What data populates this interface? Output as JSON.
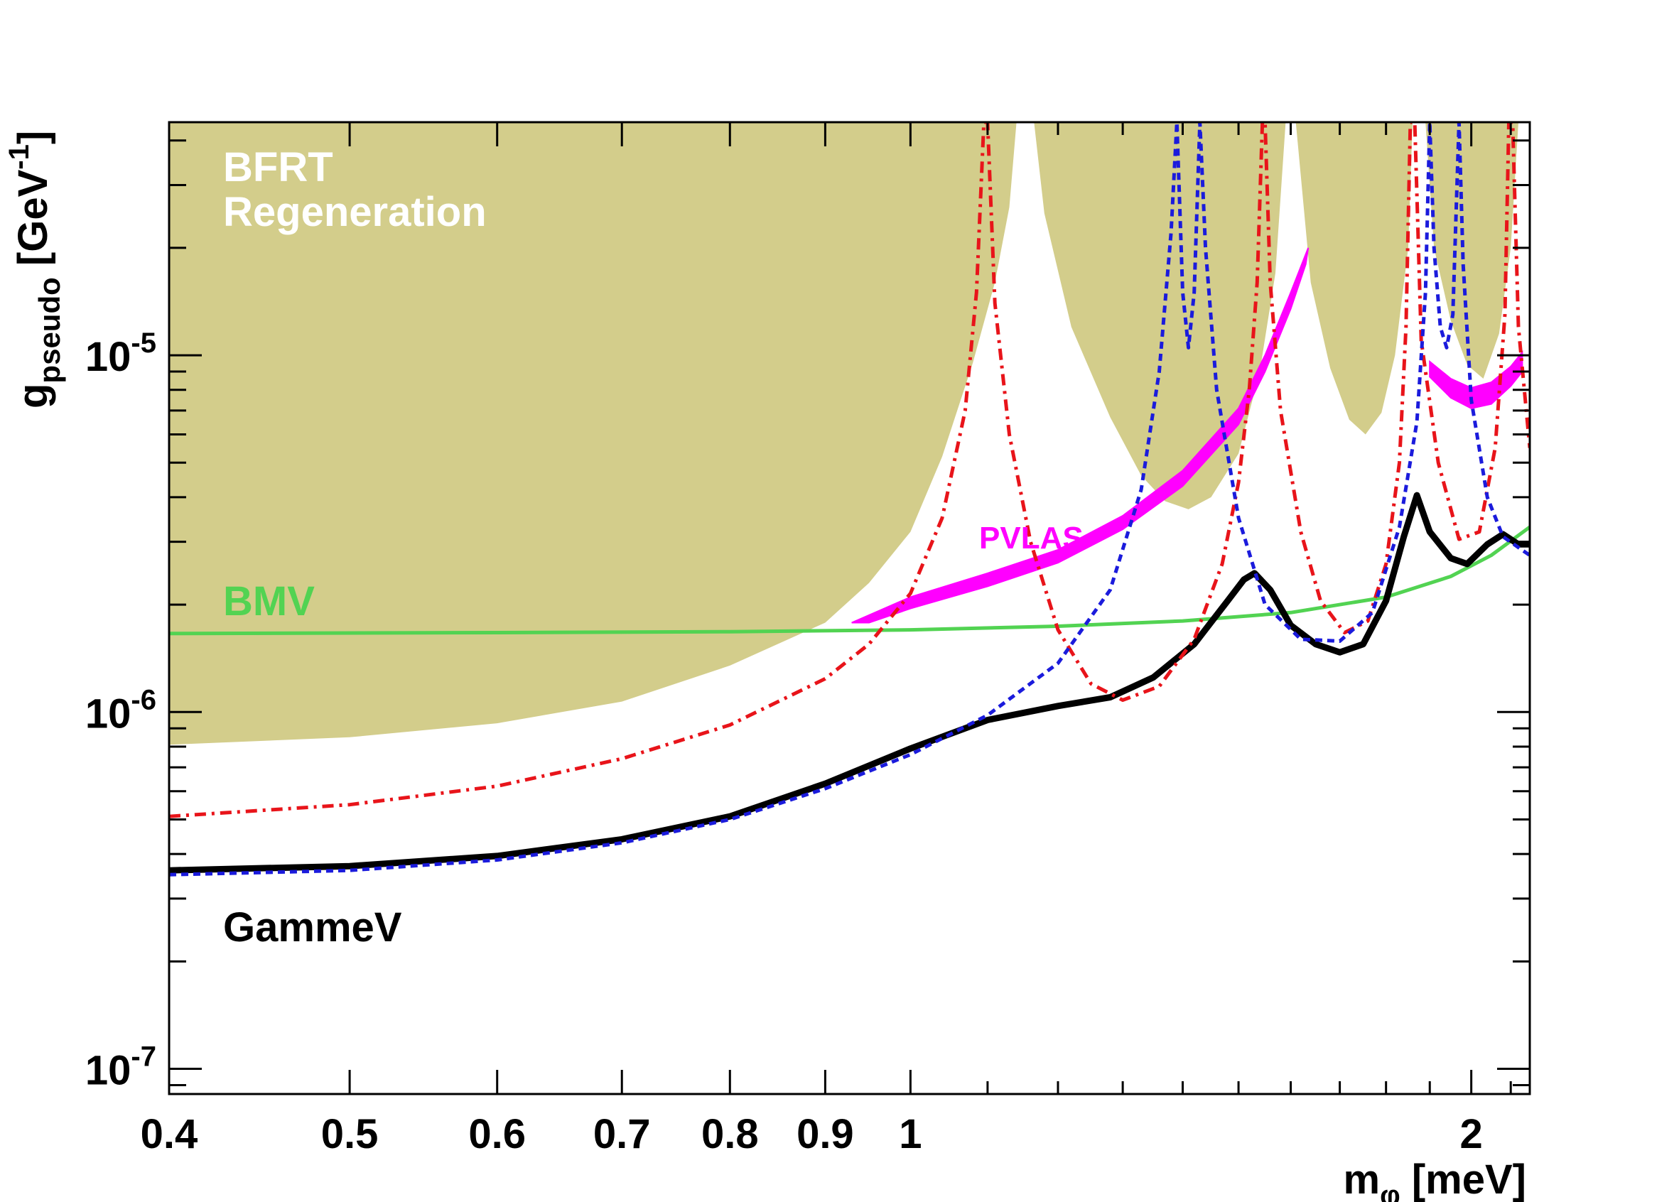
{
  "chart_data": {
    "type": "line",
    "title": "",
    "x_scale": "log",
    "y_scale": "log",
    "xlim": [
      0.4,
      2.15
    ],
    "ylim": [
      8.5e-08,
      4.5e-05
    ],
    "xlabel": {
      "main": "m",
      "sub": "φ",
      "rest": " [meV]"
    },
    "ylabel": {
      "main": "g",
      "sub": "pseudo",
      "rest": " [GeV",
      "sup": "-1",
      "end": "]"
    },
    "x_ticks": [
      {
        "v": 0.4,
        "label": "0.4"
      },
      {
        "v": 0.5,
        "label": "0.5"
      },
      {
        "v": 0.6,
        "label": "0.6"
      },
      {
        "v": 0.7,
        "label": "0.7"
      },
      {
        "v": 0.8,
        "label": "0.8"
      },
      {
        "v": 0.9,
        "label": "0.9"
      },
      {
        "v": 1.0,
        "label": "1"
      },
      {
        "v": 2.0,
        "label": "2"
      }
    ],
    "y_ticks": [
      {
        "v": 1e-07,
        "base": "10",
        "exp": "-7"
      },
      {
        "v": 1e-06,
        "base": "10",
        "exp": "-6"
      },
      {
        "v": 1e-05,
        "base": "10",
        "exp": "-5"
      }
    ],
    "colors": {
      "bfrt_fill": "#d3cd8b",
      "pvlas": "#ff00ff",
      "bmv": "#52d352",
      "gammev": "#000000",
      "red_dashdot": "#e8141a",
      "blue_dashed": "#1b1bdc"
    },
    "labels": {
      "bfrt_line1": "BFRT",
      "bfrt_line2": "Regeneration",
      "pvlas": "PVLAS",
      "bmv": "BMV",
      "gammev": "GammeV"
    },
    "regions": [
      {
        "name": "BFRT Regeneration",
        "lower_boundary": [
          [
            0.4,
            8.1e-07
          ],
          [
            0.5,
            8.5e-07
          ],
          [
            0.6,
            9.3e-07
          ],
          [
            0.7,
            1.07e-06
          ],
          [
            0.8,
            1.35e-06
          ],
          [
            0.9,
            1.78e-06
          ],
          [
            0.95,
            2.3e-06
          ],
          [
            1.0,
            3.2e-06
          ],
          [
            1.04,
            5.2e-06
          ],
          [
            1.08,
            9.5e-06
          ],
          [
            1.11,
            1.6e-05
          ],
          [
            1.13,
            2.6e-05
          ],
          [
            1.14,
            4.5e-05
          ],
          [
            1.165,
            4.5e-05
          ],
          [
            1.18,
            2.5e-05
          ],
          [
            1.22,
            1.2e-05
          ],
          [
            1.28,
            6.7e-06
          ],
          [
            1.33,
            4.6e-06
          ],
          [
            1.37,
            3.9e-06
          ],
          [
            1.41,
            3.7e-06
          ],
          [
            1.45,
            4e-06
          ],
          [
            1.5,
            5.3e-06
          ],
          [
            1.54,
            9e-06
          ],
          [
            1.57,
            1.7e-05
          ],
          [
            1.59,
            4.5e-05
          ],
          [
            1.61,
            4.5e-05
          ],
          [
            1.64,
            1.6e-05
          ],
          [
            1.68,
            9.2e-06
          ],
          [
            1.72,
            6.6e-06
          ],
          [
            1.755,
            6e-06
          ],
          [
            1.79,
            6.9e-06
          ],
          [
            1.82,
            1e-05
          ],
          [
            1.85,
            2e-05
          ],
          [
            1.86,
            4.5e-05
          ],
          [
            1.89,
            4.5e-05
          ],
          [
            1.91,
            2e-05
          ],
          [
            1.95,
            1.25e-05
          ],
          [
            1.99,
            9.4e-06
          ],
          [
            2.03,
            8.6e-06
          ],
          [
            2.07,
            1.15e-05
          ],
          [
            2.1,
            2e-05
          ],
          [
            2.12,
            4.5e-05
          ]
        ]
      }
    ],
    "series": [
      {
        "name": "PVLAS",
        "style": "band",
        "lower": [
          [
            0.95,
            1.78e-06
          ],
          [
            1.0,
            1.95e-06
          ],
          [
            1.1,
            2.25e-06
          ],
          [
            1.2,
            2.62e-06
          ],
          [
            1.3,
            3.25e-06
          ],
          [
            1.4,
            4.3e-06
          ],
          [
            1.5,
            6.4e-06
          ],
          [
            1.55,
            9e-06
          ],
          [
            1.6,
            1.35e-05
          ],
          [
            1.63,
            1.8e-05
          ]
        ],
        "upper": [
          [
            0.93,
            1.78e-06
          ],
          [
            1.0,
            2.1e-06
          ],
          [
            1.1,
            2.45e-06
          ],
          [
            1.2,
            2.85e-06
          ],
          [
            1.3,
            3.55e-06
          ],
          [
            1.4,
            4.75e-06
          ],
          [
            1.5,
            7.1e-06
          ],
          [
            1.55,
            1e-05
          ],
          [
            1.6,
            1.5e-05
          ],
          [
            1.635,
            2e-05
          ]
        ]
      },
      {
        "name": "PVLAS",
        "style": "band",
        "lower": [
          [
            1.9,
            8.7e-06
          ],
          [
            1.95,
            7.6e-06
          ],
          [
            2.0,
            7.1e-06
          ],
          [
            2.05,
            7.3e-06
          ],
          [
            2.1,
            8.2e-06
          ],
          [
            2.13,
            9e-06
          ]
        ],
        "upper": [
          [
            1.9,
            9.6e-06
          ],
          [
            1.95,
            8.6e-06
          ],
          [
            2.0,
            8.1e-06
          ],
          [
            2.05,
            8.4e-06
          ],
          [
            2.1,
            9.3e-06
          ],
          [
            2.13,
            1.02e-05
          ]
        ]
      },
      {
        "name": "BMV",
        "style": "solid",
        "points": [
          [
            0.4,
            1.66e-06
          ],
          [
            0.6,
            1.67e-06
          ],
          [
            0.8,
            1.68e-06
          ],
          [
            1.0,
            1.7e-06
          ],
          [
            1.2,
            1.74e-06
          ],
          [
            1.4,
            1.8e-06
          ],
          [
            1.6,
            1.9e-06
          ],
          [
            1.8,
            2.1e-06
          ],
          [
            1.95,
            2.4e-06
          ],
          [
            2.05,
            2.75e-06
          ],
          [
            2.15,
            3.3e-06
          ]
        ]
      },
      {
        "name": "GammeV",
        "style": "solid",
        "points": [
          [
            0.4,
            3.6e-07
          ],
          [
            0.5,
            3.7e-07
          ],
          [
            0.6,
            3.95e-07
          ],
          [
            0.7,
            4.4e-07
          ],
          [
            0.8,
            5.1e-07
          ],
          [
            0.9,
            6.3e-07
          ],
          [
            1.0,
            7.9e-07
          ],
          [
            1.1,
            9.5e-07
          ],
          [
            1.2,
            1.04e-06
          ],
          [
            1.28,
            1.1e-06
          ],
          [
            1.35,
            1.25e-06
          ],
          [
            1.42,
            1.55e-06
          ],
          [
            1.48,
            2.05e-06
          ],
          [
            1.51,
            2.35e-06
          ],
          [
            1.53,
            2.45e-06
          ],
          [
            1.56,
            2.2e-06
          ],
          [
            1.6,
            1.75e-06
          ],
          [
            1.65,
            1.55e-06
          ],
          [
            1.7,
            1.47e-06
          ],
          [
            1.75,
            1.55e-06
          ],
          [
            1.8,
            2.05e-06
          ],
          [
            1.84,
            3.1e-06
          ],
          [
            1.87,
            4.05e-06
          ],
          [
            1.9,
            3.2e-06
          ],
          [
            1.95,
            2.7e-06
          ],
          [
            1.99,
            2.6e-06
          ],
          [
            2.04,
            2.95e-06
          ],
          [
            2.08,
            3.15e-06
          ],
          [
            2.12,
            2.95e-06
          ],
          [
            2.15,
            2.95e-06
          ]
        ]
      },
      {
        "name": "",
        "style": "dashdot",
        "color_key": "red_dashdot",
        "points": [
          [
            0.4,
            5.1e-07
          ],
          [
            0.5,
            5.5e-07
          ],
          [
            0.6,
            6.2e-07
          ],
          [
            0.7,
            7.4e-07
          ],
          [
            0.8,
            9.2e-07
          ],
          [
            0.9,
            1.24e-06
          ],
          [
            0.95,
            1.55e-06
          ],
          [
            1.0,
            2.15e-06
          ],
          [
            1.04,
            3.5e-06
          ],
          [
            1.07,
            7e-06
          ],
          [
            1.085,
            1.5e-05
          ],
          [
            1.095,
            4.5e-05
          ],
          [
            1.1,
            4.5e-05
          ],
          [
            1.11,
            1.4e-05
          ],
          [
            1.13,
            6e-06
          ],
          [
            1.16,
            3e-06
          ],
          [
            1.2,
            1.7e-06
          ],
          [
            1.25,
            1.2e-06
          ],
          [
            1.3,
            1.08e-06
          ],
          [
            1.36,
            1.18e-06
          ],
          [
            1.42,
            1.6e-06
          ],
          [
            1.47,
            2.6e-06
          ],
          [
            1.5,
            4.4e-06
          ],
          [
            1.52,
            8e-06
          ],
          [
            1.535,
            1.6e-05
          ],
          [
            1.545,
            4.5e-05
          ],
          [
            1.55,
            4.5e-05
          ],
          [
            1.56,
            1.6e-05
          ],
          [
            1.58,
            7e-06
          ],
          [
            1.62,
            3.2e-06
          ],
          [
            1.66,
            2.05e-06
          ],
          [
            1.71,
            1.67e-06
          ],
          [
            1.76,
            1.8e-06
          ],
          [
            1.8,
            2.6e-06
          ],
          [
            1.83,
            5e-06
          ],
          [
            1.845,
            1.2e-05
          ],
          [
            1.855,
            4.5e-05
          ],
          [
            1.865,
            4.5e-05
          ],
          [
            1.88,
            1.1e-05
          ],
          [
            1.92,
            5e-06
          ],
          [
            1.97,
            3.05e-06
          ],
          [
            2.02,
            3.2e-06
          ],
          [
            2.06,
            5.5e-06
          ],
          [
            2.085,
            1.3e-05
          ],
          [
            2.095,
            4.5e-05
          ],
          [
            2.105,
            4.5e-05
          ],
          [
            2.12,
            1.2e-05
          ],
          [
            2.15,
            5.5e-06
          ]
        ]
      },
      {
        "name": "",
        "style": "dashed",
        "color_key": "blue_dashed",
        "points": [
          [
            0.4,
            3.5e-07
          ],
          [
            0.5,
            3.6e-07
          ],
          [
            0.6,
            3.85e-07
          ],
          [
            0.7,
            4.3e-07
          ],
          [
            0.8,
            5e-07
          ],
          [
            0.9,
            6.1e-07
          ],
          [
            1.0,
            7.6e-07
          ],
          [
            1.1,
            9.8e-07
          ],
          [
            1.2,
            1.37e-06
          ],
          [
            1.28,
            2.2e-06
          ],
          [
            1.33,
            4.2e-06
          ],
          [
            1.36,
            9e-06
          ],
          [
            1.38,
            2.2e-05
          ],
          [
            1.39,
            4.5e-05
          ],
          [
            1.4,
            1.5e-05
          ],
          [
            1.41,
            1.05e-05
          ],
          [
            1.42,
            1.5e-05
          ],
          [
            1.43,
            4.5e-05
          ],
          [
            1.44,
            2e-05
          ],
          [
            1.46,
            8e-06
          ],
          [
            1.5,
            3.5e-06
          ],
          [
            1.55,
            2e-06
          ],
          [
            1.62,
            1.6e-06
          ],
          [
            1.7,
            1.58e-06
          ],
          [
            1.77,
            1.9e-06
          ],
          [
            1.83,
            3.3e-06
          ],
          [
            1.87,
            6.5e-06
          ],
          [
            1.89,
            1.5e-05
          ],
          [
            1.9,
            4.5e-05
          ],
          [
            1.91,
            2e-05
          ],
          [
            1.925,
            1.2e-05
          ],
          [
            1.94,
            1.05e-05
          ],
          [
            1.955,
            1.3e-05
          ],
          [
            1.97,
            4.5e-05
          ],
          [
            1.98,
            1.8e-05
          ],
          [
            2.0,
            7.5e-06
          ],
          [
            2.04,
            4e-06
          ],
          [
            2.08,
            3.1e-06
          ],
          [
            2.15,
            2.75e-06
          ]
        ]
      }
    ]
  }
}
